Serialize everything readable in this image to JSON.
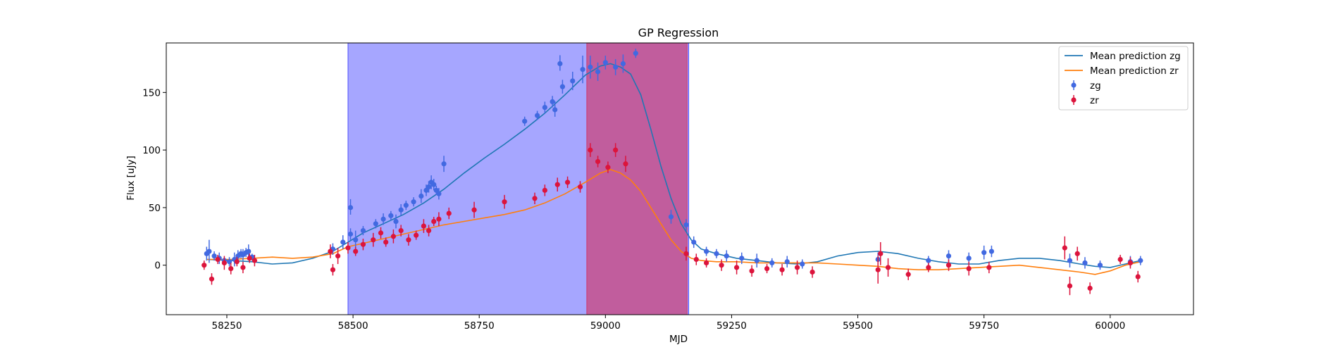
{
  "chart_data": {
    "type": "scatter",
    "title": "GP Regression",
    "xlabel": "MJD",
    "ylabel": "Flux [uJy]",
    "xlim": [
      58130,
      60165
    ],
    "ylim": [
      -43,
      193
    ],
    "x_ticks": [
      58250,
      58500,
      58750,
      59000,
      59250,
      59500,
      59750,
      60000
    ],
    "y_ticks": [
      0,
      50,
      100,
      150
    ],
    "legend_position": "top-right",
    "shaded_regions": [
      {
        "x0": 58490,
        "x1": 59165,
        "color": "#0000ff",
        "opacity": 0.35
      },
      {
        "x0": 58963,
        "x1": 59162,
        "color": "#dc143c",
        "opacity": 0.5
      }
    ],
    "series": [
      {
        "name": "Mean prediction zg",
        "kind": "line",
        "color": "#1f77b4",
        "x": [
          58210,
          58260,
          58300,
          58340,
          58380,
          58420,
          58460,
          58490,
          58520,
          58560,
          58600,
          58640,
          58680,
          58720,
          58760,
          58800,
          58840,
          58880,
          58920,
          58960,
          58990,
          59010,
          59030,
          59050,
          59070,
          59090,
          59110,
          59130,
          59150,
          59170,
          59190,
          59220,
          59260,
          59300,
          59340,
          59380,
          59420,
          59460,
          59500,
          59540,
          59580,
          59620,
          59660,
          59700,
          59740,
          59780,
          59820,
          59860,
          59900,
          59940,
          59970,
          60000,
          60030,
          60060
        ],
        "y": [
          5,
          4,
          3,
          1,
          2,
          6,
          12,
          20,
          28,
          36,
          44,
          54,
          66,
          80,
          93,
          105,
          118,
          132,
          148,
          165,
          173,
          175,
          172,
          166,
          148,
          118,
          86,
          58,
          36,
          22,
          14,
          10,
          6,
          4,
          2,
          1,
          3,
          8,
          11,
          12,
          10,
          6,
          3,
          1,
          1,
          4,
          6,
          6,
          4,
          1,
          -1,
          -2,
          1,
          4
        ]
      },
      {
        "name": "Mean prediction zr",
        "kind": "line",
        "color": "#ff7f0e",
        "x": [
          58210,
          58260,
          58300,
          58340,
          58380,
          58420,
          58460,
          58490,
          58520,
          58560,
          58600,
          58640,
          58680,
          58720,
          58760,
          58800,
          58840,
          58880,
          58920,
          58960,
          58990,
          59010,
          59030,
          59050,
          59070,
          59090,
          59110,
          59130,
          59150,
          59170,
          59190,
          59220,
          59260,
          59300,
          59340,
          59380,
          59420,
          59460,
          59500,
          59540,
          59580,
          59620,
          59660,
          59700,
          59740,
          59780,
          59820,
          59860,
          59900,
          59940,
          59970,
          60000,
          60030,
          60060
        ],
        "y": [
          5,
          5,
          6,
          7,
          6,
          7,
          10,
          16,
          19,
          23,
          27,
          31,
          35,
          38,
          41,
          44,
          48,
          54,
          62,
          72,
          80,
          83,
          80,
          74,
          64,
          50,
          36,
          22,
          12,
          6,
          4,
          3,
          3,
          2,
          2,
          2,
          2,
          1,
          0,
          -1,
          -3,
          -4,
          -4,
          -3,
          -2,
          -1,
          0,
          -2,
          -4,
          -6,
          -8,
          -5,
          0,
          3
        ]
      },
      {
        "name": "zg",
        "kind": "scatter",
        "color": "#4169e1",
        "x": [
          58210,
          58215,
          58225,
          58235,
          58245,
          58255,
          58265,
          58272,
          58278,
          58282,
          58288,
          58293,
          58300,
          58460,
          58480,
          58495,
          58505,
          58520,
          58545,
          58560,
          58575,
          58585,
          58595,
          58605,
          58620,
          58635,
          58645,
          58650,
          58655,
          58660,
          58665,
          58670,
          58680,
          58840,
          58865,
          58880,
          58895,
          58915,
          58935,
          58955,
          58970,
          58985,
          59000,
          59020,
          59035,
          59060,
          59130,
          59160,
          59175,
          59200,
          59220,
          59240,
          59270,
          59300,
          59330,
          59360,
          59390,
          59540,
          59640,
          59680,
          59720,
          59750,
          59765,
          59920,
          59950,
          59980,
          60040,
          60060
        ],
        "y": [
          10,
          12,
          8,
          6,
          4,
          3,
          5,
          8,
          10,
          9,
          11,
          12,
          7,
          14,
          20,
          27,
          22,
          30,
          36,
          40,
          43,
          38,
          48,
          52,
          55,
          60,
          65,
          68,
          72,
          70,
          65,
          62,
          88,
          125,
          130,
          137,
          142,
          155,
          160,
          170,
          172,
          168,
          176,
          172,
          175,
          184,
          42,
          35,
          20,
          12,
          10,
          8,
          6,
          4,
          2,
          3,
          1,
          5,
          4,
          8,
          6,
          11,
          12,
          4,
          2,
          0,
          3,
          4
        ],
        "err": [
          6,
          10,
          4,
          5,
          3,
          4,
          6,
          5,
          4,
          5,
          4,
          6,
          3,
          5,
          6,
          5,
          8,
          4,
          4,
          5,
          4,
          6,
          5,
          4,
          4,
          6,
          5,
          5,
          6,
          5,
          4,
          5,
          7,
          4,
          4,
          5,
          5,
          6,
          8,
          12,
          10,
          8,
          6,
          7,
          8,
          4,
          6,
          5,
          5,
          4,
          4,
          5,
          5,
          6,
          4,
          5,
          4,
          6,
          4,
          5,
          5,
          6,
          5,
          6,
          5,
          4,
          5,
          4
        ],
        "y_outliers": {
          "x": [
            58495,
            58900,
            58910
          ],
          "y": [
            50,
            135,
            175
          ]
        }
      },
      {
        "name": "zr",
        "kind": "scatter",
        "color": "#dc143c",
        "x": [
          58205,
          58220,
          58232,
          58245,
          58258,
          58270,
          58282,
          58295,
          58305,
          58455,
          58460,
          58470,
          58490,
          58505,
          58520,
          58540,
          58555,
          58565,
          58580,
          58595,
          58610,
          58625,
          58640,
          58650,
          58660,
          58670,
          58690,
          58740,
          58800,
          58860,
          58880,
          58905,
          58925,
          58950,
          58970,
          58985,
          59005,
          59020,
          59040,
          59160,
          59180,
          59200,
          59230,
          59260,
          59290,
          59320,
          59350,
          59380,
          59410,
          59540,
          59545,
          59560,
          59600,
          59640,
          59680,
          59720,
          59760,
          59910,
          59920,
          59935,
          59960,
          60020,
          60040,
          60055
        ],
        "y": [
          0,
          -12,
          5,
          2,
          -3,
          3,
          -2,
          6,
          4,
          12,
          -4,
          8,
          15,
          12,
          18,
          22,
          28,
          20,
          25,
          30,
          22,
          26,
          34,
          30,
          38,
          40,
          45,
          48,
          55,
          58,
          65,
          70,
          72,
          68,
          100,
          90,
          85,
          100,
          88,
          10,
          5,
          2,
          0,
          -2,
          -5,
          -3,
          -4,
          -2,
          -6,
          -4,
          10,
          -2,
          -8,
          -2,
          0,
          -3,
          -2,
          15,
          -18,
          10,
          -20,
          5,
          2,
          -10
        ],
        "err": [
          4,
          5,
          4,
          6,
          5,
          4,
          5,
          4,
          5,
          6,
          5,
          7,
          5,
          4,
          5,
          6,
          5,
          4,
          6,
          5,
          5,
          4,
          6,
          5,
          4,
          6,
          5,
          7,
          6,
          5,
          5,
          6,
          5,
          5,
          6,
          5,
          5,
          6,
          7,
          6,
          5,
          4,
          5,
          6,
          5,
          4,
          5,
          6,
          5,
          12,
          10,
          8,
          5,
          4,
          5,
          6,
          5,
          10,
          8,
          6,
          5,
          4,
          5,
          5
        ]
      }
    ]
  }
}
